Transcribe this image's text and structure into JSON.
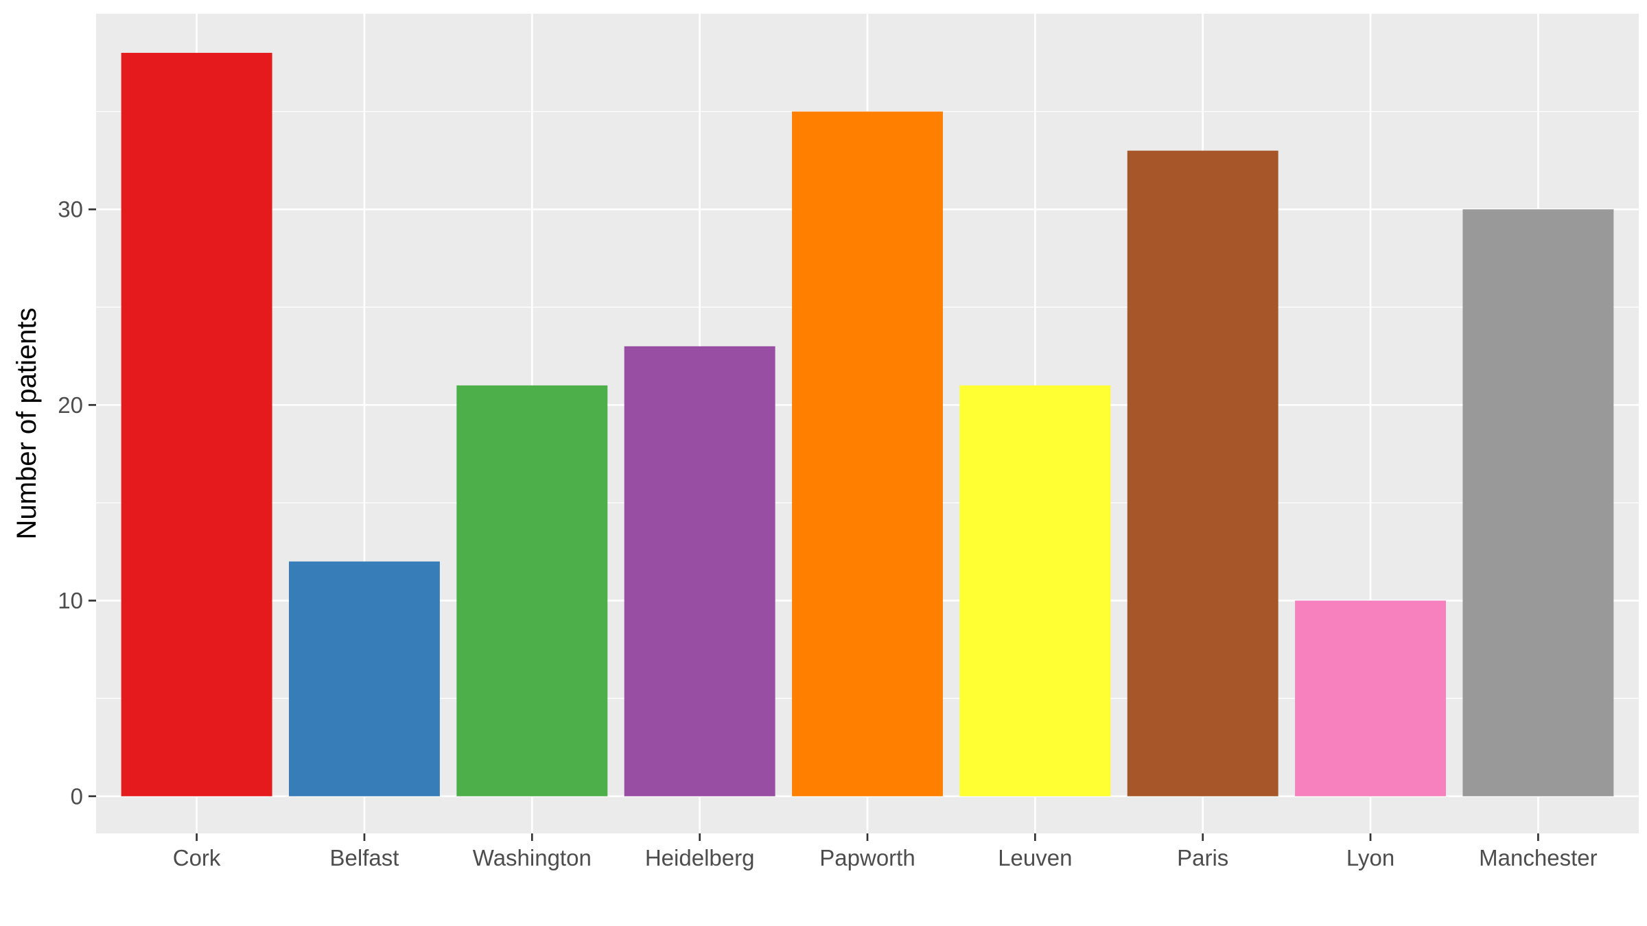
{
  "chart_data": {
    "type": "bar",
    "title": "",
    "xlabel": "",
    "ylabel": "Number of patients",
    "categories": [
      "Cork",
      "Belfast",
      "Washington",
      "Heidelberg",
      "Papworth",
      "Leuven",
      "Paris",
      "Lyon",
      "Manchester"
    ],
    "values": [
      38,
      12,
      21,
      23,
      35,
      21,
      33,
      10,
      30
    ],
    "colors": [
      "#E41A1C",
      "#377EB8",
      "#4DAF4A",
      "#984EA3",
      "#FF7F00",
      "#FFFF33",
      "#A65628",
      "#F781BF",
      "#999999"
    ],
    "yticks": [
      0,
      10,
      20,
      30
    ],
    "ylim": [
      -1.9,
      40
    ],
    "grid": true,
    "legend": "none",
    "panel_background": "#EBEBEB",
    "grid_color": "#FFFFFF"
  }
}
